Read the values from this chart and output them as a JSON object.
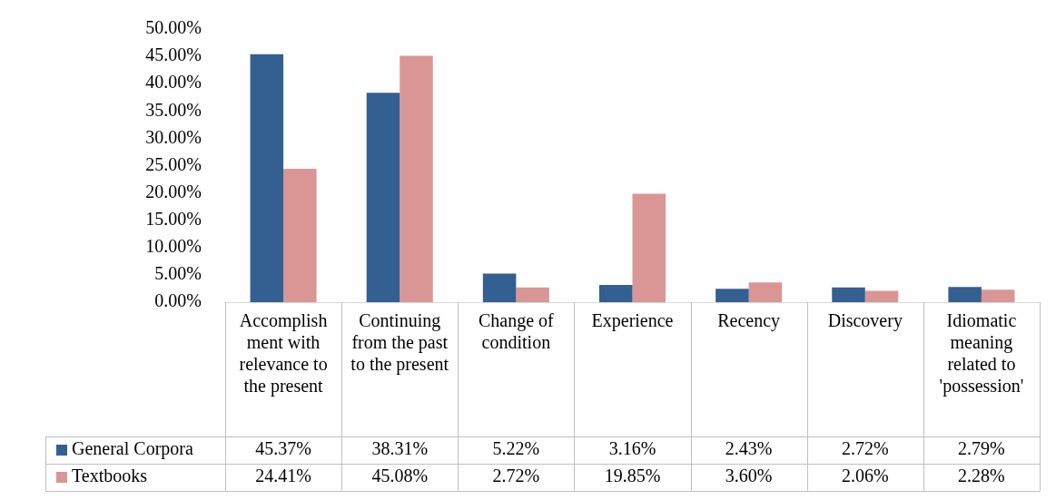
{
  "chart_data": {
    "type": "bar",
    "categories": [
      "Accomplishment with relevance to the present",
      "Continuing from the past to the present",
      "Change of condition",
      "Experience",
      "Recency",
      "Discovery",
      "Idiomatic meaning related to 'possession'"
    ],
    "series": [
      {
        "name": "General Corpora",
        "color": "#335f91",
        "values": [
          45.37,
          38.31,
          5.22,
          3.16,
          2.43,
          2.72,
          2.79
        ],
        "value_labels": [
          "45.37%",
          "38.31%",
          "5.22%",
          "3.16%",
          "2.43%",
          "2.72%",
          "2.79%"
        ]
      },
      {
        "name": "Textbooks",
        "color": "#d99694",
        "values": [
          24.41,
          45.08,
          2.72,
          19.85,
          3.6,
          2.06,
          2.28
        ],
        "value_labels": [
          "24.41%",
          "45.08%",
          "2.72%",
          "19.85%",
          "3.60%",
          "2.06%",
          "2.28%"
        ]
      }
    ],
    "ylim": [
      0,
      50
    ],
    "yticks": [
      {
        "value": 0,
        "label": "0.00%"
      },
      {
        "value": 5,
        "label": "5.00%"
      },
      {
        "value": 10,
        "label": "10.00%"
      },
      {
        "value": 15,
        "label": "15.00%"
      },
      {
        "value": 20,
        "label": "20.00%"
      },
      {
        "value": 25,
        "label": "25.00%"
      },
      {
        "value": 30,
        "label": "30.00%"
      },
      {
        "value": 35,
        "label": "35.00%"
      },
      {
        "value": 40,
        "label": "40.00%"
      },
      {
        "value": 45,
        "label": "45.00%"
      },
      {
        "value": 50,
        "label": "50.00%"
      }
    ],
    "grid": false,
    "legend": "bottom left"
  }
}
